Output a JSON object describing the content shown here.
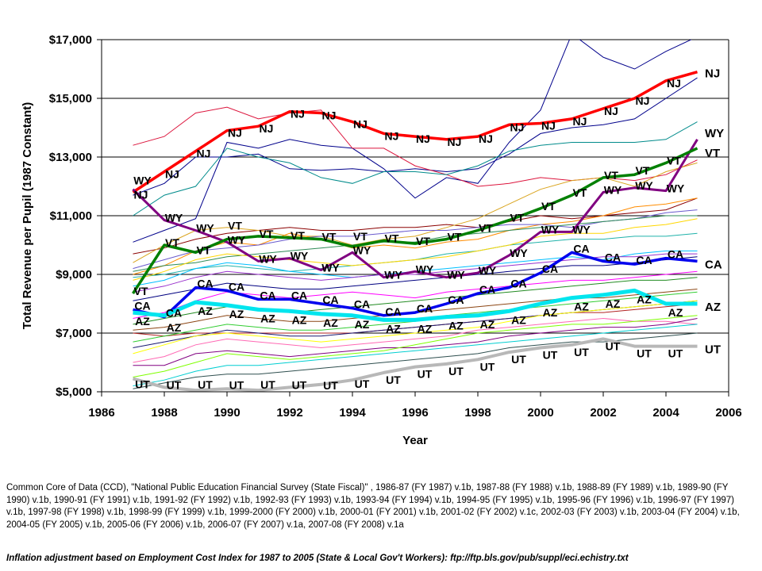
{
  "chart_data": {
    "type": "line",
    "title": "",
    "xlabel": "Year",
    "ylabel": "Total Revenue per Pupil (1987 Constant)",
    "xlim": [
      1986,
      2006
    ],
    "ylim": [
      5000,
      17000
    ],
    "x_ticks": [
      "1986",
      "1988",
      "1990",
      "1992",
      "1994",
      "1996",
      "1998",
      "2000",
      "2002",
      "2004",
      "2006"
    ],
    "x_tick_values": [
      1986,
      1988,
      1990,
      1992,
      1994,
      1996,
      1998,
      2000,
      2002,
      2004,
      2006
    ],
    "y_ticks": [
      "$5,000",
      "$7,000",
      "$9,000",
      "$11,000",
      "$13,000",
      "$15,000",
      "$17,000"
    ],
    "y_tick_values": [
      5000,
      7000,
      9000,
      11000,
      13000,
      15000,
      17000
    ],
    "grid": "horizontal",
    "legend": "inline end labels",
    "x": [
      1987,
      1988,
      1989,
      1990,
      1991,
      1992,
      1993,
      1994,
      1995,
      1996,
      1997,
      1998,
      1999,
      2000,
      2001,
      2002,
      2003,
      2004,
      2005
    ],
    "series": [
      {
        "name": "NJ",
        "color": "#ff0000",
        "highlight": true,
        "values": [
          11800,
          12500,
          13200,
          13900,
          14050,
          14550,
          14500,
          14200,
          13800,
          13700,
          13600,
          13700,
          14100,
          14150,
          14300,
          14650,
          15000,
          15600,
          15900
        ]
      },
      {
        "name": "WY",
        "color": "#800080",
        "highlight": true,
        "values": [
          11900,
          10850,
          10500,
          10100,
          9450,
          9550,
          9150,
          9750,
          8900,
          9100,
          8900,
          9050,
          9650,
          10450,
          10450,
          11800,
          11950,
          11850,
          13600
        ]
      },
      {
        "name": "VT",
        "color": "#008000",
        "highlight": true,
        "values": [
          8350,
          10000,
          9750,
          10200,
          10300,
          10250,
          10200,
          9950,
          10150,
          10050,
          10200,
          10500,
          10850,
          11250,
          11700,
          12300,
          12400,
          12800,
          13300
        ]
      },
      {
        "name": "CA",
        "color": "#0000ee",
        "highlight": true,
        "values": [
          7800,
          7550,
          8550,
          8450,
          8150,
          8150,
          8000,
          7850,
          7600,
          7700,
          8000,
          8350,
          8550,
          9050,
          9750,
          9450,
          9350,
          9550,
          9450
        ]
      },
      {
        "name": "AZ",
        "color": "#00e5ee",
        "highlight": true,
        "values": [
          7700,
          7600,
          8050,
          7950,
          7800,
          7750,
          7650,
          7600,
          7450,
          7450,
          7550,
          7600,
          7750,
          8000,
          8200,
          8300,
          8450,
          8000,
          8000
        ]
      },
      {
        "name": "UT",
        "color": "#b8b8b8",
        "highlight": true,
        "values": [
          5450,
          5150,
          5050,
          5100,
          5050,
          5150,
          5250,
          5400,
          5650,
          5850,
          5950,
          6100,
          6350,
          6500,
          6600,
          6800,
          6550,
          6550,
          6550
        ]
      }
    ],
    "other_states_note": "Unlabeled thin lines for remaining states (values approximate)",
    "other_states": [
      {
        "color": "#00008b",
        "values": [
          10100,
          10500,
          10900,
          13500,
          13300,
          13600,
          13400,
          13300,
          12600,
          11600,
          12300,
          12100,
          13500,
          14600,
          17200,
          16400,
          16000,
          16600,
          17100
        ]
      },
      {
        "color": "#00008b",
        "values": [
          11700,
          12100,
          13000,
          13000,
          13100,
          12600,
          12550,
          12600,
          12500,
          12600,
          12500,
          12600,
          13100,
          13800,
          14000,
          14100,
          14300,
          15000,
          15700
        ]
      },
      {
        "color": "#dc143c",
        "values": [
          13400,
          13700,
          14500,
          14700,
          14300,
          14500,
          14600,
          13300,
          13300,
          12700,
          12400,
          12000,
          12100,
          12300,
          12200,
          12300,
          12200,
          12400,
          12900
        ]
      },
      {
        "color": "#008b8b",
        "values": [
          11000,
          11700,
          12000,
          13300,
          13000,
          12800,
          12300,
          12100,
          12500,
          12500,
          12400,
          12700,
          13200,
          13400,
          13500,
          13500,
          13500,
          13600,
          14200
        ]
      },
      {
        "color": "#8b0000",
        "values": [
          9700,
          9900,
          10200,
          10400,
          10500,
          10600,
          10500,
          10500,
          10600,
          10600,
          10700,
          10600,
          10800,
          11000,
          10900,
          11000,
          11100,
          11200,
          11600
        ]
      },
      {
        "color": "#daa520",
        "values": [
          9400,
          10000,
          10500,
          10600,
          10500,
          10300,
          10300,
          10000,
          10200,
          10300,
          10600,
          10900,
          11400,
          11900,
          12200,
          12300,
          12000,
          12500,
          12800
        ]
      },
      {
        "color": "#ff8c00",
        "values": [
          9000,
          9300,
          9800,
          10100,
          10000,
          10400,
          10200,
          9900,
          10000,
          9900,
          10100,
          10200,
          10500,
          10700,
          10800,
          11000,
          11300,
          11400,
          11600
        ]
      },
      {
        "color": "#6a5acd",
        "values": [
          9200,
          9500,
          9800,
          9900,
          10000,
          10200,
          10300,
          10300,
          10400,
          10500,
          10500,
          10600,
          10700,
          10700,
          10600,
          10800,
          10900,
          11100,
          11200
        ]
      },
      {
        "color": "#2e8b57",
        "values": [
          9100,
          9300,
          9400,
          9600,
          9700,
          9800,
          9900,
          10000,
          10100,
          10100,
          10300,
          10400,
          10500,
          10600,
          10700,
          10800,
          10900,
          11000,
          11000
        ]
      },
      {
        "color": "#20b2aa",
        "values": [
          8900,
          9000,
          9200,
          9300,
          9200,
          9100,
          9200,
          9300,
          9400,
          9500,
          9700,
          9800,
          10000,
          10100,
          10200,
          10200,
          10300,
          10300,
          10400
        ]
      },
      {
        "color": "#ffd700",
        "values": [
          8800,
          9100,
          9500,
          9700,
          9600,
          9500,
          9400,
          9300,
          9400,
          9500,
          9600,
          9800,
          10000,
          10300,
          10400,
          10400,
          10600,
          10700,
          10900
        ]
      },
      {
        "color": "#00bfff",
        "values": [
          8600,
          8800,
          9200,
          9400,
          9300,
          9100,
          9000,
          8900,
          9000,
          9100,
          9200,
          9300,
          9400,
          9500,
          9600,
          9500,
          9700,
          9800,
          9800
        ]
      },
      {
        "color": "#9932cc",
        "values": [
          8400,
          8600,
          8900,
          9100,
          9000,
          8900,
          8800,
          8900,
          9000,
          9000,
          9100,
          9200,
          9300,
          9400,
          9500,
          9600,
          9600,
          9700,
          9700
        ]
      },
      {
        "color": "#000080",
        "values": [
          8100,
          8300,
          8500,
          8700,
          8600,
          8500,
          8500,
          8600,
          8700,
          8800,
          8900,
          9000,
          9100,
          9200,
          9300,
          9300,
          9400,
          9500,
          9600
        ]
      },
      {
        "color": "#ff00ff",
        "values": [
          7500,
          7700,
          8100,
          8400,
          8300,
          8200,
          8300,
          8400,
          8300,
          8200,
          8400,
          8500,
          8600,
          8700,
          8800,
          8800,
          8900,
          9000,
          9100
        ]
      },
      {
        "color": "#228b22",
        "values": [
          7300,
          7500,
          7700,
          7900,
          7800,
          7700,
          7800,
          7900,
          8000,
          8100,
          8200,
          8300,
          8400,
          8500,
          8600,
          8700,
          8800,
          8800,
          8900
        ]
      },
      {
        "color": "#8b4513",
        "values": [
          7100,
          7200,
          7400,
          7600,
          7500,
          7400,
          7400,
          7500,
          7600,
          7700,
          7800,
          7900,
          8000,
          8100,
          8200,
          8200,
          8300,
          8400,
          8500
        ]
      },
      {
        "color": "#b22222",
        "values": [
          7000,
          6900,
          7000,
          7000,
          7000,
          7000,
          7000,
          7000,
          7100,
          7200,
          7300,
          7400,
          7500,
          7600,
          7700,
          7700,
          7800,
          7900,
          8000
        ]
      },
      {
        "color": "#32cd32",
        "values": [
          6700,
          6900,
          7100,
          7300,
          7200,
          7100,
          7100,
          7200,
          7300,
          7400,
          7600,
          7700,
          7800,
          7900,
          8000,
          8100,
          8200,
          8300,
          8400
        ]
      },
      {
        "color": "#191970",
        "values": [
          6500,
          6700,
          6900,
          7100,
          7000,
          6900,
          6900,
          7000,
          7100,
          7200,
          7300,
          7400,
          7500,
          7600,
          7700,
          7800,
          7900,
          8000,
          8100
        ]
      },
      {
        "color": "#ffff00",
        "values": [
          6300,
          6600,
          6900,
          7000,
          6900,
          6800,
          6700,
          6800,
          6900,
          7000,
          7100,
          7200,
          7400,
          7600,
          7700,
          7800,
          7900,
          8000,
          8100
        ]
      },
      {
        "color": "#ff69b4",
        "values": [
          6000,
          6200,
          6600,
          6800,
          6700,
          6600,
          6500,
          6600,
          6700,
          6800,
          6900,
          7100,
          7200,
          7300,
          7400,
          7500,
          7400,
          7400,
          7300
        ]
      },
      {
        "color": "#800080",
        "values": [
          5900,
          5900,
          6300,
          6400,
          6300,
          6200,
          6300,
          6400,
          6500,
          6500,
          6600,
          6700,
          6900,
          7000,
          7100,
          7200,
          7200,
          7300,
          7500
        ]
      },
      {
        "color": "#7fff00",
        "values": [
          5500,
          5700,
          6000,
          6300,
          6200,
          6100,
          6200,
          6300,
          6400,
          6600,
          6800,
          7000,
          7100,
          7200,
          7300,
          7300,
          7400,
          7500,
          7600
        ]
      },
      {
        "color": "#00ced1",
        "values": [
          5200,
          5400,
          5700,
          5900,
          5900,
          6000,
          6100,
          6200,
          6300,
          6400,
          6500,
          6600,
          6700,
          6800,
          6900,
          7000,
          7100,
          7200,
          7300
        ]
      },
      {
        "color": "#2f4f4f",
        "values": [
          5100,
          5300,
          5500,
          5600,
          5600,
          5700,
          5800,
          5900,
          6000,
          6100,
          6200,
          6300,
          6500,
          6600,
          6700,
          6700,
          6800,
          6900,
          7000
        ]
      }
    ]
  },
  "footer": {
    "source_text": "Common Core of Data (CCD), \"National Public Education Financial Survey (State Fiscal)\" , 1986-87 (FY 1987) v.1b, 1987-88 (FY 1988) v.1b, 1988-89 (FY 1989) v.1b, 1989-90 (FY 1990) v.1b, 1990-91 (FY 1991) v.1b, 1991-92 (FY 1992) v.1b, 1992-93 (FY 1993) v.1b, 1993-94 (FY 1994) v.1b, 1994-95 (FY 1995) v.1b, 1995-96 (FY 1996) v.1b, 1996-97 (FY 1997) v.1b, 1997-98 (FY 1998) v.1b, 1998-99 (FY 1999) v.1b, 1999-2000 (FY 2000) v.1b, 2000-01 (FY 2001) v.1b, 2001-02 (FY 2002) v.1c, 2002-03 (FY 2003) v.1b, 2003-04 (FY 2004) v.1b, 2004-05 (FY 2005) v.1b, 2005-06 (FY 2006) v.1b, 2006-07 (FY 2007) v.1a, 2007-08 (FY 2008) v.1a",
    "inflation_text": "Inflation adjustment based on Employment Cost Index for 1987 to 2005 (State & Local Gov't Workers): ftp://ftp.bls.gov/pub/suppl/eci.echistry.txt"
  }
}
